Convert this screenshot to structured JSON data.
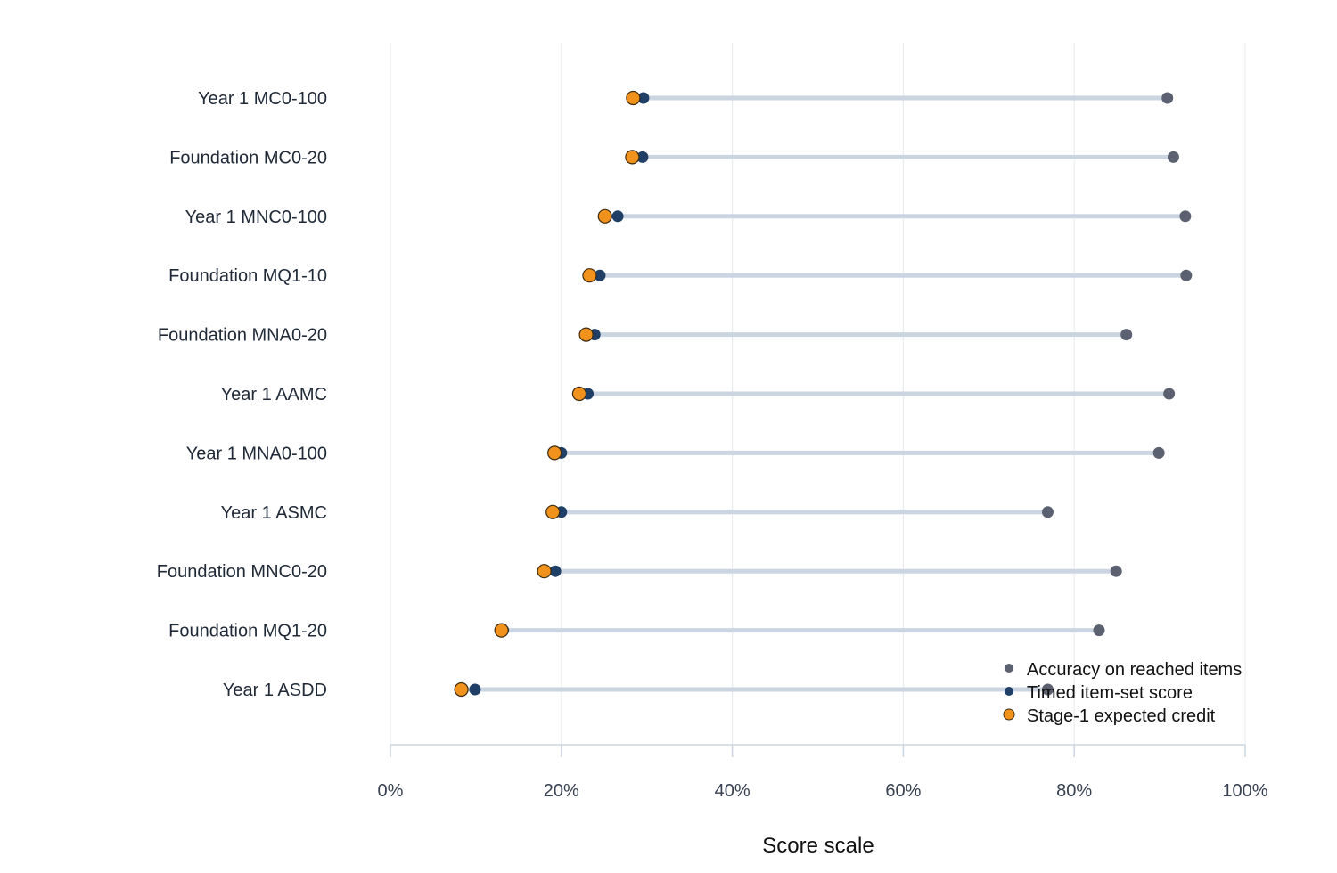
{
  "chart_data": {
    "type": "scatter",
    "title": "",
    "xlabel": "Score scale",
    "ylabel": "",
    "xlim": [
      0,
      100
    ],
    "x_ticks": [
      0,
      20,
      40,
      60,
      80,
      100
    ],
    "x_tick_labels": [
      "0%",
      "20%",
      "40%",
      "60%",
      "80%",
      "100%"
    ],
    "grid": "vertical",
    "legend_position": "bottom-right",
    "categories": [
      "Year 1 MC0-100",
      "Foundation MC0-20",
      "Year 1 MNC0-100",
      "Foundation MQ1-10",
      "Foundation MNA0-20",
      "Year 1 AAMC",
      "Year 1 MNA0-100",
      "Year 1 ASMC",
      "Foundation MNC0-20",
      "Foundation MQ1-20",
      "Year 1 ASDD"
    ],
    "series": [
      {
        "name": "Accuracy on reached items",
        "color": "#5b6170",
        "values": [
          90.9,
          91.6,
          93.0,
          93.1,
          86.1,
          91.1,
          89.9,
          76.9,
          84.9,
          82.9,
          76.9
        ]
      },
      {
        "name": "Timed item-set score",
        "color": "#1f3f66",
        "values": [
          29.6,
          29.5,
          26.6,
          24.5,
          23.9,
          23.1,
          20.0,
          20.0,
          19.3,
          13.2,
          9.9
        ]
      },
      {
        "name": "Stage-1 expected credit",
        "color": "#f0921c",
        "values": [
          28.4,
          28.3,
          25.1,
          23.3,
          22.9,
          22.1,
          19.2,
          19.0,
          18.0,
          13.0,
          8.3
        ]
      }
    ],
    "range_line_color": "#cbd5e1",
    "grid_color": "#e9edf1",
    "axis_color": "#cbd5e1"
  }
}
